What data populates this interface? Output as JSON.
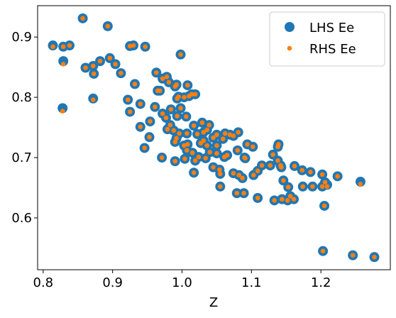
{
  "chart_data": {
    "type": "scatter",
    "xlabel": "Z",
    "x": [
      0.814,
      0.829,
      0.838,
      0.857,
      0.893,
      0.925,
      0.93,
      0.947,
      0.829,
      0.861,
      0.872,
      0.873,
      0.882,
      0.896,
      0.904,
      0.912,
      0.828,
      0.872,
      0.922,
      0.925,
      0.932,
      0.94,
      0.963,
      0.965,
      0.968,
      0.978,
      0.972,
      0.981,
      0.99,
      0.998,
      0.993,
      0.992,
      0.995,
      1.003,
      1.008,
      1.01,
      1.014,
      1.019,
      0.961,
      0.972,
      0.984,
      0.998,
      1.006,
      0.993,
      0.977,
      0.983,
      0.979,
      0.988,
      0.996,
      1.007,
      0.954,
      0.94,
      0.953,
      0.946,
      0.971,
      0.99,
      0.992,
      1.003,
      1.008,
      1.007,
      1.015,
      1.017,
      1.022,
      1.029,
      1.031,
      1.036,
      1.039,
      1.045,
      1.036,
      1.031,
      1.027,
      1.017,
      0.99,
      1.004,
      1.019,
      1.024,
      1.034,
      1.04,
      1.05,
      1.05,
      1.059,
      1.069,
      1.074,
      1.081,
      1.062,
      1.05,
      1.08,
      1.09,
      1.065,
      1.061,
      1.054,
      1.045,
      1.055,
      1.055,
      1.074,
      1.082,
      1.087,
      1.079,
      1.089,
      1.091,
      1.094,
      1.102,
      1.103,
      1.109,
      1.109,
      1.115,
      1.127,
      1.131,
      1.138,
      1.142,
      1.139,
      1.138,
      1.143,
      1.146,
      1.133,
      1.144,
      1.152,
      1.156,
      1.161,
      1.153,
      1.162,
      1.173,
      1.174,
      1.185,
      1.188,
      1.202,
      1.202,
      1.209,
      1.206,
      1.205,
      1.224,
      1.257,
      1.203,
      1.246,
      1.277
    ],
    "series": [
      {
        "name": "LHS Ee",
        "color": "#1f77b4",
        "values": [
          0.886,
          0.884,
          0.886,
          0.931,
          0.918,
          0.885,
          0.886,
          0.884,
          0.86,
          0.849,
          0.852,
          0.839,
          0.86,
          0.865,
          0.855,
          0.84,
          0.782,
          0.798,
          0.796,
          0.776,
          0.822,
          0.789,
          0.841,
          0.811,
          0.811,
          0.834,
          0.831,
          0.825,
          0.818,
          0.871,
          0.798,
          0.821,
          0.801,
          0.8,
          0.82,
          0.802,
          0.805,
          0.805,
          0.784,
          0.773,
          0.78,
          0.782,
          0.768,
          0.769,
          0.766,
          0.754,
          0.747,
          0.745,
          0.74,
          0.74,
          0.76,
          0.751,
          0.734,
          0.716,
          0.7,
          0.726,
          0.732,
          0.72,
          0.722,
          0.712,
          0.708,
          0.753,
          0.739,
          0.758,
          0.742,
          0.746,
          0.754,
          0.733,
          0.72,
          0.728,
          0.724,
          0.675,
          0.694,
          0.698,
          0.695,
          0.701,
          0.699,
          0.709,
          0.707,
          0.72,
          0.731,
          0.738,
          0.736,
          0.742,
          0.74,
          0.738,
          0.712,
          0.7,
          0.704,
          0.701,
          0.68,
          0.684,
          0.673,
          0.652,
          0.674,
          0.671,
          0.666,
          0.641,
          0.641,
          0.699,
          0.722,
          0.718,
          0.671,
          0.678,
          0.633,
          0.687,
          0.687,
          0.705,
          0.695,
          0.687,
          0.722,
          0.718,
          0.684,
          0.662,
          0.629,
          0.631,
          0.629,
          0.636,
          0.631,
          0.651,
          0.686,
          0.679,
          0.652,
          0.676,
          0.652,
          0.672,
          0.652,
          0.655,
          0.659,
          0.62,
          0.669,
          0.66,
          0.545,
          0.538,
          0.535
        ]
      },
      {
        "name": "RHS Ee",
        "color": "#ff7f0e",
        "values": [
          0.884,
          0.884,
          0.886,
          0.931,
          0.918,
          0.885,
          0.886,
          0.884,
          0.855,
          0.849,
          0.852,
          0.839,
          0.86,
          0.865,
          0.855,
          0.84,
          0.777,
          0.796,
          0.796,
          0.776,
          0.822,
          0.789,
          0.841,
          0.811,
          0.811,
          0.834,
          0.831,
          0.825,
          0.818,
          0.871,
          0.798,
          0.821,
          0.801,
          0.8,
          0.82,
          0.802,
          0.805,
          0.805,
          0.784,
          0.773,
          0.78,
          0.782,
          0.768,
          0.769,
          0.766,
          0.754,
          0.747,
          0.745,
          0.74,
          0.74,
          0.76,
          0.751,
          0.734,
          0.716,
          0.7,
          0.726,
          0.732,
          0.72,
          0.722,
          0.712,
          0.708,
          0.753,
          0.739,
          0.758,
          0.742,
          0.746,
          0.754,
          0.733,
          0.72,
          0.728,
          0.724,
          0.675,
          0.694,
          0.698,
          0.695,
          0.701,
          0.699,
          0.709,
          0.707,
          0.72,
          0.731,
          0.738,
          0.736,
          0.742,
          0.74,
          0.738,
          0.712,
          0.7,
          0.704,
          0.701,
          0.68,
          0.684,
          0.673,
          0.652,
          0.674,
          0.671,
          0.666,
          0.641,
          0.641,
          0.699,
          0.722,
          0.718,
          0.671,
          0.678,
          0.633,
          0.687,
          0.687,
          0.705,
          0.695,
          0.687,
          0.722,
          0.718,
          0.684,
          0.662,
          0.629,
          0.631,
          0.629,
          0.636,
          0.631,
          0.651,
          0.686,
          0.679,
          0.652,
          0.676,
          0.652,
          0.672,
          0.652,
          0.652,
          0.659,
          0.62,
          0.669,
          0.656,
          0.545,
          0.538,
          0.535
        ]
      }
    ],
    "xlim": [
      0.792,
      1.3
    ],
    "ylim": [
      0.514,
      0.952
    ],
    "xticks": [
      0.8,
      0.9,
      {
        "value": 1,
        "label": "1.0"
      },
      1.1,
      1.2
    ],
    "yticks": [
      0.6,
      0.7,
      0.8,
      0.9
    ],
    "legend": "upper right"
  }
}
